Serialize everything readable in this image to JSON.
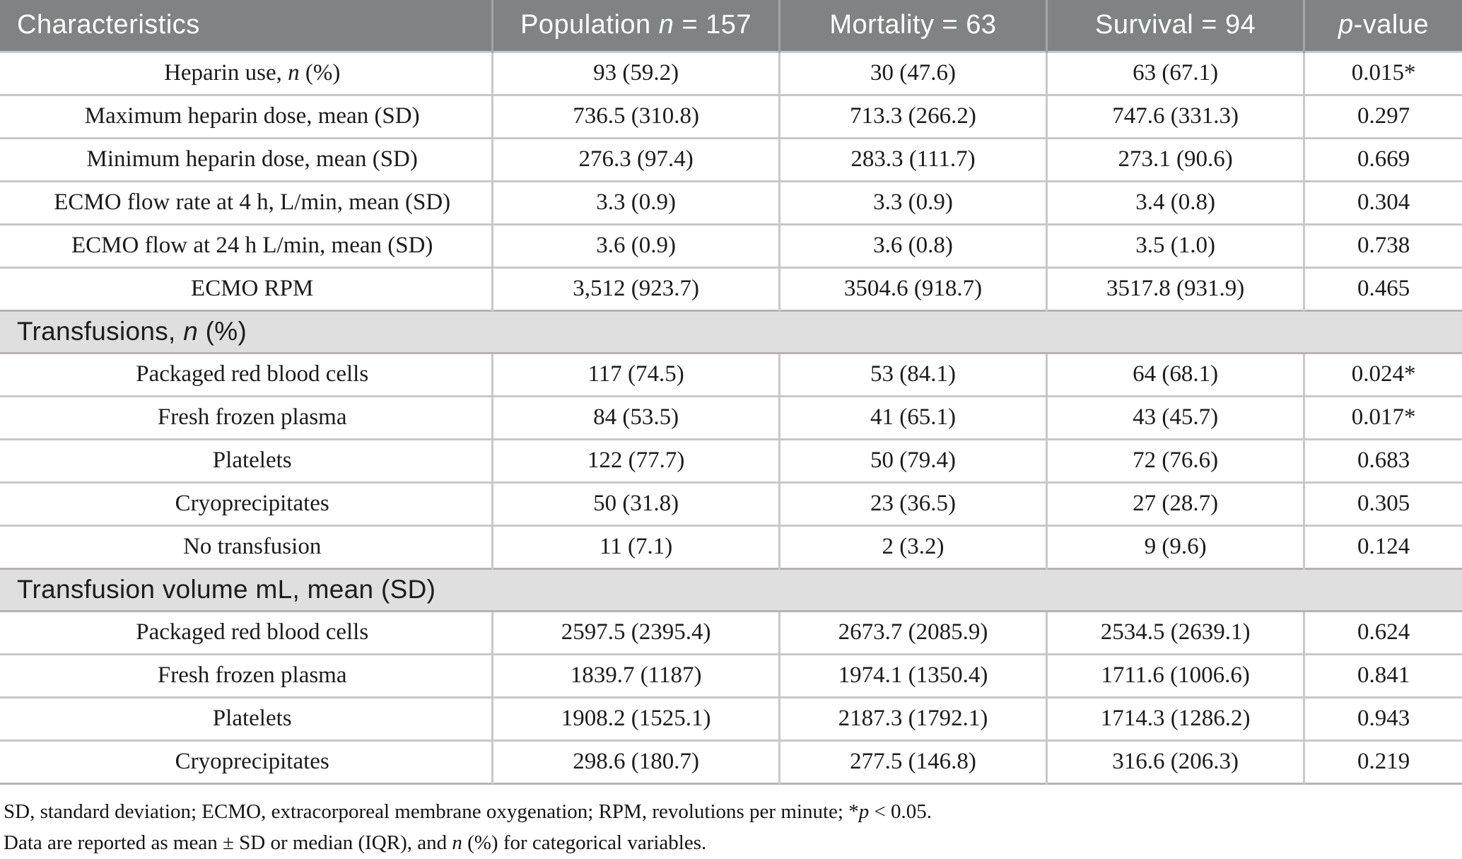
{
  "table": {
    "colors": {
      "header_bg": "#808384",
      "header_divider": "#a3a6a6",
      "section_bg": "#e0dfe0",
      "section_divider": "#b5b3b4",
      "divider": "#c8c8c8",
      "text": "#1b1b1b",
      "header_text": "#ffffff"
    },
    "header": {
      "characteristics": {
        "pre": "Characteristics",
        "italic": "",
        "post": ""
      },
      "population": {
        "pre": "Population ",
        "italic": "n",
        "post": " = 157"
      },
      "mortality": {
        "pre": "Mortality = 63",
        "italic": "",
        "post": ""
      },
      "survival": {
        "pre": "Survival = 94",
        "italic": "",
        "post": ""
      },
      "pvalue": {
        "pre": "",
        "italic": "p",
        "post": "-value"
      }
    },
    "rows": [
      {
        "type": "data",
        "label": {
          "pre": "Heparin use, ",
          "italic": "n",
          "post": " (%)"
        },
        "values": [
          "93 (59.2)",
          "30 (47.6)",
          "63 (67.1)",
          "0.015*"
        ]
      },
      {
        "type": "data",
        "label": {
          "pre": "Maximum heparin dose, mean (SD)",
          "italic": "",
          "post": ""
        },
        "values": [
          "736.5 (310.8)",
          "713.3 (266.2)",
          "747.6 (331.3)",
          "0.297"
        ]
      },
      {
        "type": "data",
        "label": {
          "pre": "Minimum heparin dose, mean (SD)",
          "italic": "",
          "post": ""
        },
        "values": [
          "276.3 (97.4)",
          "283.3 (111.7)",
          "273.1 (90.6)",
          "0.669"
        ]
      },
      {
        "type": "data",
        "label": {
          "pre": "ECMO flow rate at 4 h, L/min, mean (SD)",
          "italic": "",
          "post": ""
        },
        "values": [
          "3.3 (0.9)",
          "3.3 (0.9)",
          "3.4 (0.8)",
          "0.304"
        ]
      },
      {
        "type": "data",
        "label": {
          "pre": "ECMO flow at 24 h L/min, mean (SD)",
          "italic": "",
          "post": ""
        },
        "values": [
          "3.6 (0.9)",
          "3.6 (0.8)",
          "3.5 (1.0)",
          "0.738"
        ]
      },
      {
        "type": "data",
        "label": {
          "pre": "ECMO RPM",
          "italic": "",
          "post": ""
        },
        "values": [
          "3,512 (923.7)",
          "3504.6 (918.7)",
          "3517.8 (931.9)",
          "0.465"
        ]
      },
      {
        "type": "section",
        "label": {
          "pre": "Transfusions, ",
          "italic": "n",
          "post": " (%)"
        }
      },
      {
        "type": "data",
        "label": {
          "pre": "Packaged red blood cells",
          "italic": "",
          "post": ""
        },
        "values": [
          "117 (74.5)",
          "53 (84.1)",
          "64 (68.1)",
          "0.024*"
        ]
      },
      {
        "type": "data",
        "label": {
          "pre": "Fresh frozen plasma",
          "italic": "",
          "post": ""
        },
        "values": [
          "84 (53.5)",
          "41 (65.1)",
          "43 (45.7)",
          "0.017*"
        ]
      },
      {
        "type": "data",
        "label": {
          "pre": "Platelets",
          "italic": "",
          "post": ""
        },
        "values": [
          "122 (77.7)",
          "50 (79.4)",
          "72 (76.6)",
          "0.683"
        ]
      },
      {
        "type": "data",
        "label": {
          "pre": "Cryoprecipitates",
          "italic": "",
          "post": ""
        },
        "values": [
          "50 (31.8)",
          "23 (36.5)",
          "27 (28.7)",
          "0.305"
        ]
      },
      {
        "type": "data",
        "label": {
          "pre": "No transfusion",
          "italic": "",
          "post": ""
        },
        "values": [
          "11 (7.1)",
          "2 (3.2)",
          "9 (9.6)",
          "0.124"
        ]
      },
      {
        "type": "section",
        "label": {
          "pre": "Transfusion volume mL, mean (SD)",
          "italic": "",
          "post": ""
        }
      },
      {
        "type": "data",
        "label": {
          "pre": "Packaged red blood cells",
          "italic": "",
          "post": ""
        },
        "values": [
          "2597.5 (2395.4)",
          "2673.7 (2085.9)",
          "2534.5 (2639.1)",
          "0.624"
        ]
      },
      {
        "type": "data",
        "label": {
          "pre": "Fresh frozen plasma",
          "italic": "",
          "post": ""
        },
        "values": [
          "1839.7 (1187)",
          "1974.1 (1350.4)",
          "1711.6 (1006.6)",
          "0.841"
        ]
      },
      {
        "type": "data",
        "label": {
          "pre": "Platelets",
          "italic": "",
          "post": ""
        },
        "values": [
          "1908.2 (1525.1)",
          "2187.3 (1792.1)",
          "1714.3 (1286.2)",
          "0.943"
        ]
      },
      {
        "type": "data",
        "label": {
          "pre": "Cryoprecipitates",
          "italic": "",
          "post": ""
        },
        "values": [
          "298.6 (180.7)",
          "277.5 (146.8)",
          "316.6 (206.3)",
          "0.219"
        ]
      }
    ],
    "footnotes": [
      {
        "pre": "SD, standard deviation; ECMO, extracorporeal membrane oxygenation; RPM, revolutions per minute; *",
        "italic": "p",
        "post": " < 0.05."
      },
      {
        "pre": "Data are reported as mean ± SD or median (IQR), and ",
        "italic": "n",
        "post": " (%) for categorical variables."
      }
    ]
  }
}
